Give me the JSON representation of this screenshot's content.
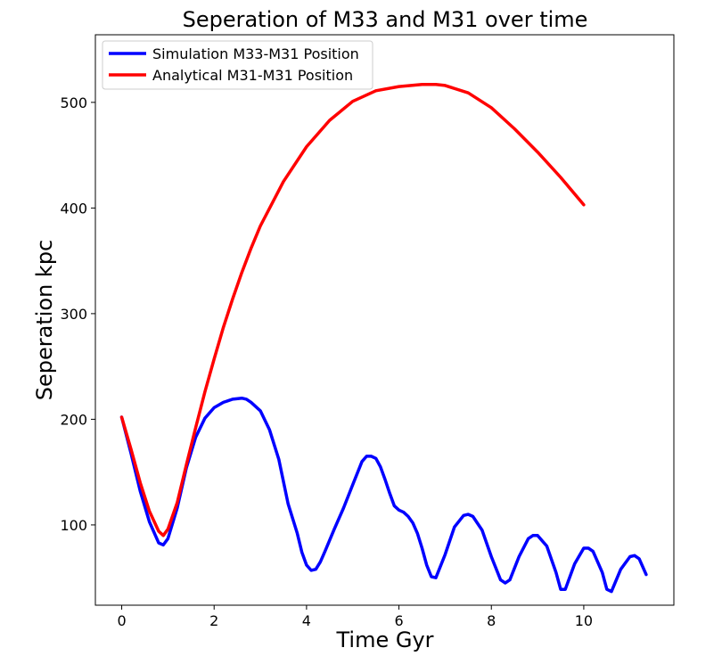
{
  "chart_data": {
    "type": "line",
    "title": "Seperation of M33 and M31 over time",
    "xlabel": "Time Gyr",
    "ylabel": "Seperation kpc",
    "xlim": [
      -0.57,
      11.95
    ],
    "ylim": [
      24,
      564
    ],
    "xticks": [
      0,
      2,
      4,
      6,
      8,
      10
    ],
    "yticks": [
      100,
      200,
      300,
      400,
      500
    ],
    "grid": false,
    "legend_position": "top-left",
    "series": [
      {
        "name": "Simulation M33-M31 Position",
        "color": "#0000ff",
        "x": [
          0,
          0.2,
          0.4,
          0.6,
          0.8,
          0.9,
          1.0,
          1.2,
          1.4,
          1.6,
          1.8,
          2.0,
          2.2,
          2.4,
          2.6,
          2.7,
          2.8,
          3.0,
          3.2,
          3.4,
          3.6,
          3.8,
          3.9,
          4.0,
          4.1,
          4.2,
          4.3,
          4.4,
          4.6,
          4.8,
          5.0,
          5.2,
          5.3,
          5.4,
          5.5,
          5.6,
          5.7,
          5.8,
          5.9,
          6.0,
          6.1,
          6.2,
          6.3,
          6.4,
          6.5,
          6.6,
          6.7,
          6.8,
          7.0,
          7.2,
          7.4,
          7.5,
          7.6,
          7.8,
          8.0,
          8.2,
          8.3,
          8.4,
          8.6,
          8.8,
          8.9,
          9.0,
          9.2,
          9.4,
          9.5,
          9.6,
          9.8,
          10.0,
          10.1,
          10.2,
          10.4,
          10.5,
          10.6,
          10.8,
          11.0,
          11.1,
          11.2,
          11.35
        ],
        "y": [
          202,
          168,
          132,
          103,
          83,
          81,
          87,
          116,
          154,
          183,
          201,
          211,
          216,
          219,
          220,
          219,
          216,
          208,
          190,
          162,
          120,
          92,
          74,
          62,
          57,
          58,
          65,
          75,
          96,
          116,
          138,
          160,
          165,
          165,
          163,
          155,
          143,
          130,
          118,
          114,
          112,
          108,
          102,
          92,
          78,
          62,
          51,
          50,
          72,
          98,
          109,
          110,
          108,
          95,
          70,
          48,
          45,
          48,
          70,
          87,
          90,
          90,
          80,
          55,
          39,
          39,
          63,
          78,
          78,
          75,
          55,
          39,
          37,
          58,
          70,
          71,
          68,
          53
        ]
      },
      {
        "name": "Analytical M31-M31 Position",
        "color": "#ff0000",
        "x": [
          0,
          0.2,
          0.4,
          0.6,
          0.8,
          0.9,
          1.0,
          1.2,
          1.4,
          1.6,
          1.8,
          2.0,
          2.2,
          2.4,
          2.6,
          2.8,
          3.0,
          3.5,
          4.0,
          4.5,
          5.0,
          5.5,
          6.0,
          6.5,
          6.8,
          7.0,
          7.5,
          8.0,
          8.5,
          9.0,
          9.5,
          10.0
        ],
        "y": [
          202,
          172,
          140,
          113,
          94,
          90,
          96,
          121,
          157,
          192,
          226,
          257,
          287,
          314,
          339,
          362,
          383,
          425,
          458,
          483,
          501,
          511,
          515,
          517,
          517,
          516,
          509,
          495,
          475,
          453,
          429,
          403
        ]
      }
    ]
  }
}
